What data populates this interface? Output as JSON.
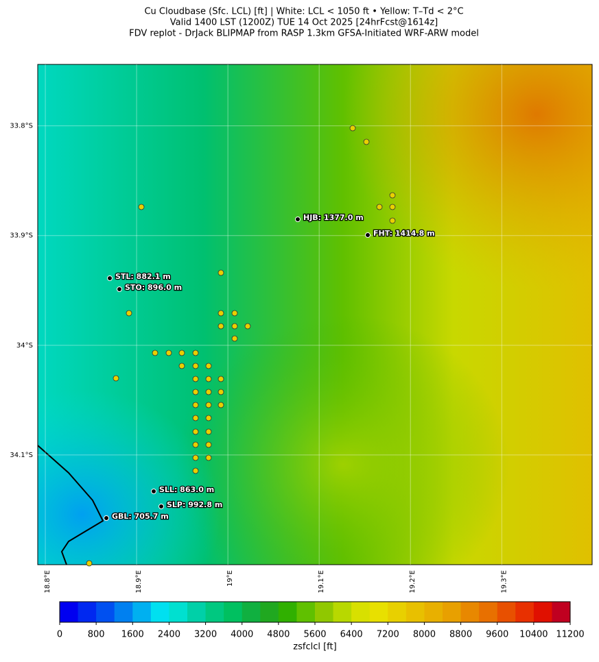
{
  "title": [
    "Cu Cloudbase (Sfc. LCL) [ft]  |  White: LCL < 1050 ft • Yellow: T–Td < 2°C",
    "Valid 1400 LST (1200Z) TUE 14 Oct 2025 [24hrFcst@1614z]",
    "FDV replot - DrJack BLIPMAP from RASP 1.3km GFSA-Initiated WRF-ARW model"
  ],
  "map": {
    "xlim": [
      18.7917,
      19.399
    ],
    "ylim": [
      -34.2,
      -33.744
    ],
    "xticks": [
      {
        "value": 18.8,
        "label": "18.8°E"
      },
      {
        "value": 18.9,
        "label": "18.9°E"
      },
      {
        "value": 19.0,
        "label": "19°E"
      },
      {
        "value": 19.1,
        "label": "19.1°E"
      },
      {
        "value": 19.2,
        "label": "19.2°E"
      },
      {
        "value": 19.3,
        "label": "19.3°E"
      }
    ],
    "yticks": [
      {
        "value": -33.8,
        "label": "33.8°S"
      },
      {
        "value": -33.9,
        "label": "33.9°S"
      },
      {
        "value": -34.0,
        "label": "34°S"
      },
      {
        "value": -34.1,
        "label": "34.1°S"
      }
    ],
    "stations": [
      "HJB: 1377.0 m",
      "FHT: 1414.8 m",
      "STL: 882.1 m",
      "STO: 896.0 m",
      "SLL: 863.0 m",
      "SLP: 992.8 m",
      "GBL: 705.7 m"
    ]
  },
  "colorbar": {
    "lim": [
      0,
      11200
    ],
    "ticks": [
      0,
      800,
      1600,
      2400,
      3200,
      4000,
      4800,
      5600,
      6400,
      7200,
      8000,
      8800,
      9600,
      10400,
      11200
    ],
    "label": "zsfclcl [ft]",
    "colors": [
      "#0000f0",
      "#0028f0",
      "#0050f0",
      "#0080f0",
      "#00b0f0",
      "#00e0f0",
      "#00e0d0",
      "#00d0a8",
      "#00c880",
      "#00c060",
      "#10b040",
      "#20a820",
      "#30b000",
      "#60c000",
      "#90c800",
      "#b8d800",
      "#d8e000",
      "#e8e000",
      "#e8d000",
      "#e8c000",
      "#e8b000",
      "#e8a000",
      "#e88800",
      "#e87000",
      "#e85000",
      "#e83000",
      "#e01000",
      "#c00020"
    ]
  }
}
